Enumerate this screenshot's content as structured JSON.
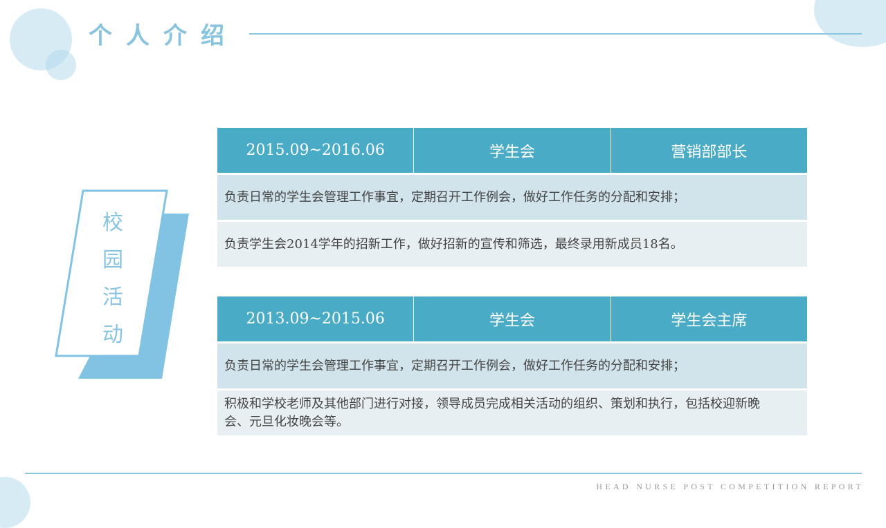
{
  "header": {
    "title": "个人介绍"
  },
  "side_label": [
    "校",
    "园",
    "活",
    "动"
  ],
  "footer": "HEAD NURSE POST COMPETITION REPORT",
  "entries": [
    {
      "period": "2015.09~2016.06",
      "org": "学生会",
      "role": "营销部部长",
      "duties": [
        "负责日常的学生会管理工作事宜，定期召开工作例会，做好工作任务的分配和安排；",
        "负责学生会2014学年的招新工作，做好招新的宣传和筛选，最终录用新成员18名。"
      ]
    },
    {
      "period": "2013.09~2015.06",
      "org": "学生会",
      "role": "学生会主席",
      "duties": [
        "负责日常的学生会管理工作事宜，定期召开工作例会，做好工作任务的分配和安排；",
        "积极和学校老师及其他部门进行对接，领导成员完成相关活动的组织、策划和执行，包括校迎新晚会、元旦化妆晚会等。"
      ]
    }
  ],
  "colors": {
    "accent": "#4aabc6",
    "light_blue": "#82c2e3",
    "row1": "#d1e4eb",
    "row2": "#e7eff2"
  }
}
